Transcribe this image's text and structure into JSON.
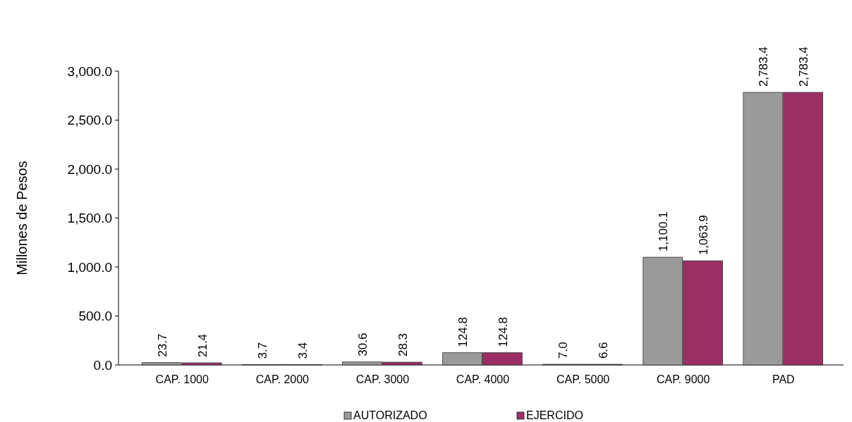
{
  "chart_data": {
    "type": "bar",
    "ylabel": "Millones de Pesos",
    "categories": [
      "CAP. 1000",
      "CAP. 2000",
      "CAP. 3000",
      "CAP. 4000",
      "CAP. 5000",
      "CAP. 9000",
      "PAD"
    ],
    "series": [
      {
        "name": "AUTORIZADO",
        "color": "#9a9a9a",
        "values": [
          23.7,
          3.7,
          30.6,
          124.8,
          7.0,
          1100.1,
          2783.4
        ],
        "value_labels": [
          "23.7",
          "3.7",
          "30.6",
          "124.8",
          "7.0",
          "1,100.1",
          "2,783.4"
        ]
      },
      {
        "name": "EJERCIDO",
        "color": "#9b2f63",
        "values": [
          21.4,
          3.4,
          28.3,
          124.8,
          6.6,
          1063.9,
          2783.4
        ],
        "value_labels": [
          "21.4",
          "3.4",
          "28.3",
          "124.8",
          "6.6",
          "1,063.9",
          "2,783.4"
        ]
      }
    ],
    "ylim": [
      0,
      3000
    ],
    "yticks": [
      {
        "value": 0,
        "label": "0.0"
      },
      {
        "value": 500,
        "label": "500.0"
      },
      {
        "value": 1000,
        "label": "1,000.0"
      },
      {
        "value": 1500,
        "label": "1,500.0"
      },
      {
        "value": 2000,
        "label": "2,000.0"
      },
      {
        "value": 2500,
        "label": "2,500.0"
      },
      {
        "value": 3000,
        "label": "3,000.0"
      }
    ],
    "legend": "bottom"
  }
}
